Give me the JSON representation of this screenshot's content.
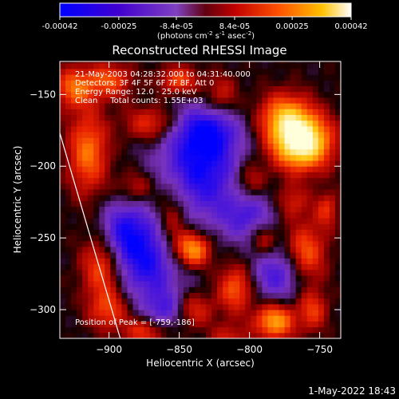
{
  "colorbar": {
    "ticks": [
      "-0.00042",
      "-0.00025",
      "-8.4e-05",
      "8.4e-05",
      "0.00025",
      "0.00042"
    ],
    "tick_values": [
      -0.00042,
      -0.00025,
      -8.4e-05,
      8.4e-05,
      0.00025,
      0.00042
    ],
    "unit_parts": [
      "(photons cm",
      "-2",
      " s",
      "-1",
      " asec",
      "-2",
      ")"
    ]
  },
  "title": "Reconstructed RHESSI Image",
  "info": {
    "line1": "21-May-2003 04:28:32.000 to 04:31:40.000",
    "line2": "Detectors: 3F 4F 5F 6F 7F 8F, Att 0",
    "line3": "Energy Range: 12.0 - 25.0 keV",
    "line4": "Clean     Total counts: 1.55E+03"
  },
  "peak_label": "Position of Peak = [-759,-186]",
  "timestamp": "1-May-2022 18:43",
  "chart_data": {
    "type": "heatmap",
    "title": "Reconstructed RHESSI Image",
    "xlabel": "Heliocentric X (arcsec)",
    "ylabel": "Heliocentric Y (arcsec)",
    "xlim": [
      -935,
      -735
    ],
    "ylim": [
      -320,
      -127
    ],
    "x_ticks": [
      -900,
      -850,
      -800,
      -750
    ],
    "y_ticks": [
      -150,
      -200,
      -250,
      -300
    ],
    "x_tick_labels": [
      "−900",
      "−850",
      "−800",
      "−750"
    ],
    "y_tick_labels": [
      "−150",
      "−200",
      "−250",
      "−300"
    ],
    "colormap": "red-temperature",
    "value_range": [
      -0.00042,
      0.00042
    ],
    "peak": [
      -759,
      -186
    ],
    "limb_line": [
      [
        -935,
        -177
      ],
      [
        -892,
        -320
      ]
    ]
  }
}
